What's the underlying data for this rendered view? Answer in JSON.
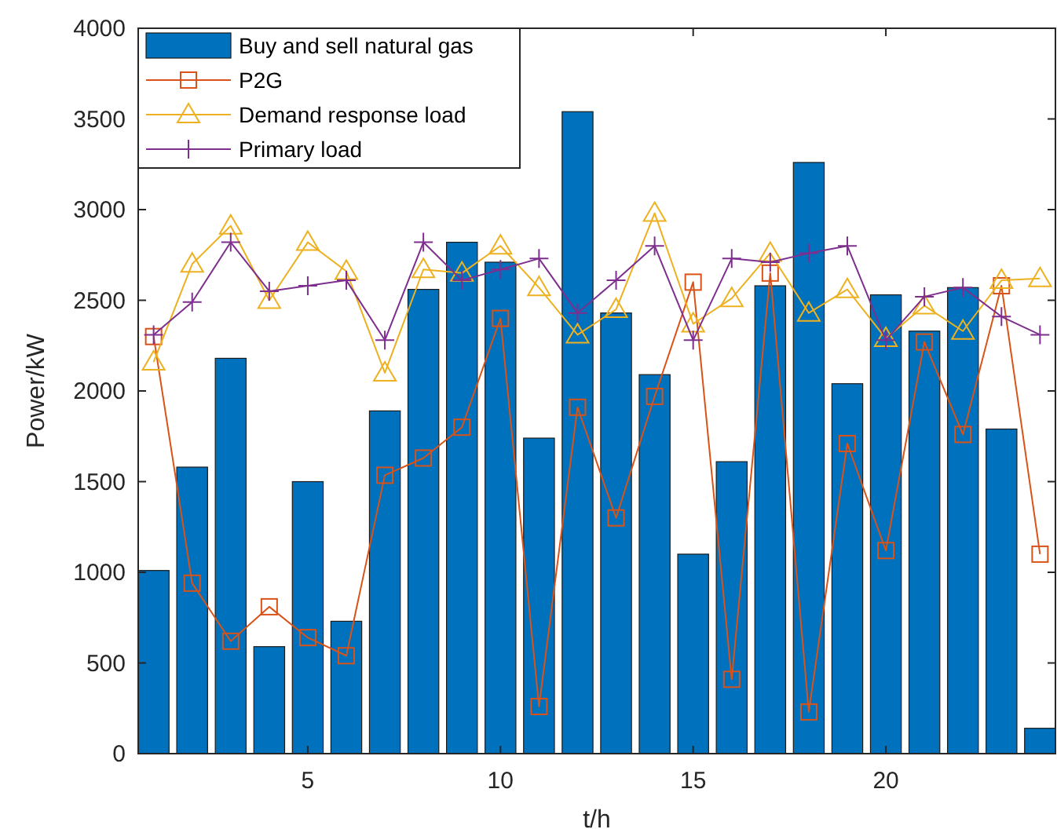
{
  "chart_data": {
    "type": "bar",
    "xlabel": "t/h",
    "ylabel": "Power/kW",
    "x": [
      1,
      2,
      3,
      4,
      5,
      6,
      7,
      8,
      9,
      10,
      11,
      12,
      13,
      14,
      15,
      16,
      17,
      18,
      19,
      20,
      21,
      22,
      23,
      24
    ],
    "xlim": [
      0.6,
      24.4
    ],
    "xticks": [
      5,
      10,
      15,
      20
    ],
    "ylim": [
      0,
      4000
    ],
    "yticks": [
      0,
      500,
      1000,
      1500,
      2000,
      2500,
      3000,
      3500,
      4000
    ],
    "grid": false,
    "legend": "top left",
    "series": [
      {
        "name": "Buy and sell natural gas",
        "color": "#0072bd",
        "values": [
          1010,
          1580,
          2180,
          590,
          1500,
          730,
          1890,
          2560,
          2820,
          2710,
          1740,
          3540,
          2430,
          2090,
          1100,
          1610,
          2580,
          3260,
          2040,
          2530,
          2330,
          2570,
          1790,
          140
        ]
      },
      {
        "name": "P2G",
        "type": "line",
        "marker": "square",
        "color": "#d95319",
        "values": [
          2300,
          940,
          620,
          810,
          640,
          540,
          1535,
          1630,
          1800,
          2400,
          260,
          1910,
          1300,
          1970,
          2600,
          410,
          2650,
          230,
          1710,
          1120,
          2270,
          1760,
          2580,
          1100
        ]
      },
      {
        "name": "Demand response load",
        "type": "line",
        "marker": "triangle",
        "color": "#edb120",
        "values": [
          2160,
          2700,
          2910,
          2500,
          2820,
          2660,
          2100,
          2670,
          2650,
          2800,
          2570,
          2310,
          2450,
          2980,
          2370,
          2510,
          2760,
          2430,
          2560,
          2290,
          2470,
          2330,
          2610,
          2620
        ]
      },
      {
        "name": "Primary load",
        "type": "line",
        "marker": "cross",
        "color": "#7e2f8e",
        "values": [
          2310,
          2490,
          2820,
          2550,
          2580,
          2610,
          2280,
          2820,
          2610,
          2670,
          2730,
          2430,
          2610,
          2800,
          2280,
          2730,
          2710,
          2760,
          2800,
          2280,
          2520,
          2570,
          2410,
          2310
        ]
      }
    ]
  }
}
